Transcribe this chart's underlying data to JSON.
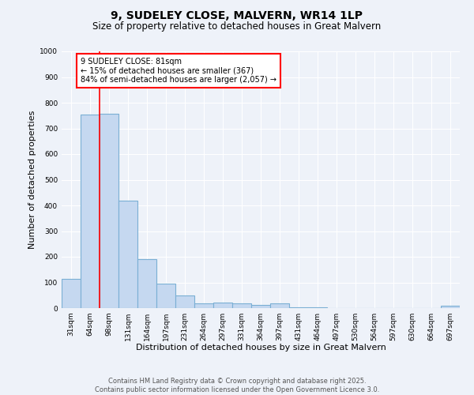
{
  "title": "9, SUDELEY CLOSE, MALVERN, WR14 1LP",
  "subtitle": "Size of property relative to detached houses in Great Malvern",
  "xlabel": "Distribution of detached houses by size in Great Malvern",
  "ylabel": "Number of detached properties",
  "categories": [
    "31sqm",
    "64sqm",
    "98sqm",
    "131sqm",
    "164sqm",
    "197sqm",
    "231sqm",
    "264sqm",
    "297sqm",
    "331sqm",
    "364sqm",
    "397sqm",
    "431sqm",
    "464sqm",
    "497sqm",
    "530sqm",
    "564sqm",
    "597sqm",
    "630sqm",
    "664sqm",
    "697sqm"
  ],
  "values": [
    115,
    755,
    758,
    420,
    190,
    95,
    48,
    20,
    23,
    20,
    13,
    18,
    3,
    2,
    1,
    0,
    0,
    0,
    0,
    0,
    8
  ],
  "bar_color": "#c5d8f0",
  "bar_edge_color": "#7aafd4",
  "bar_edge_width": 0.8,
  "red_line_x": 1.5,
  "annotation_text": "9 SUDELEY CLOSE: 81sqm\n← 15% of detached houses are smaller (367)\n84% of semi-detached houses are larger (2,057) →",
  "annotation_box_color": "white",
  "annotation_box_edge_color": "red",
  "ylim": [
    0,
    1000
  ],
  "yticks": [
    0,
    100,
    200,
    300,
    400,
    500,
    600,
    700,
    800,
    900,
    1000
  ],
  "background_color": "#eef2f9",
  "grid_color": "white",
  "title_fontsize": 10,
  "subtitle_fontsize": 8.5,
  "tick_fontsize": 6.5,
  "label_fontsize": 8,
  "footer_line1": "Contains HM Land Registry data © Crown copyright and database right 2025.",
  "footer_line2": "Contains public sector information licensed under the Open Government Licence 3.0.",
  "footer_fontsize": 6
}
